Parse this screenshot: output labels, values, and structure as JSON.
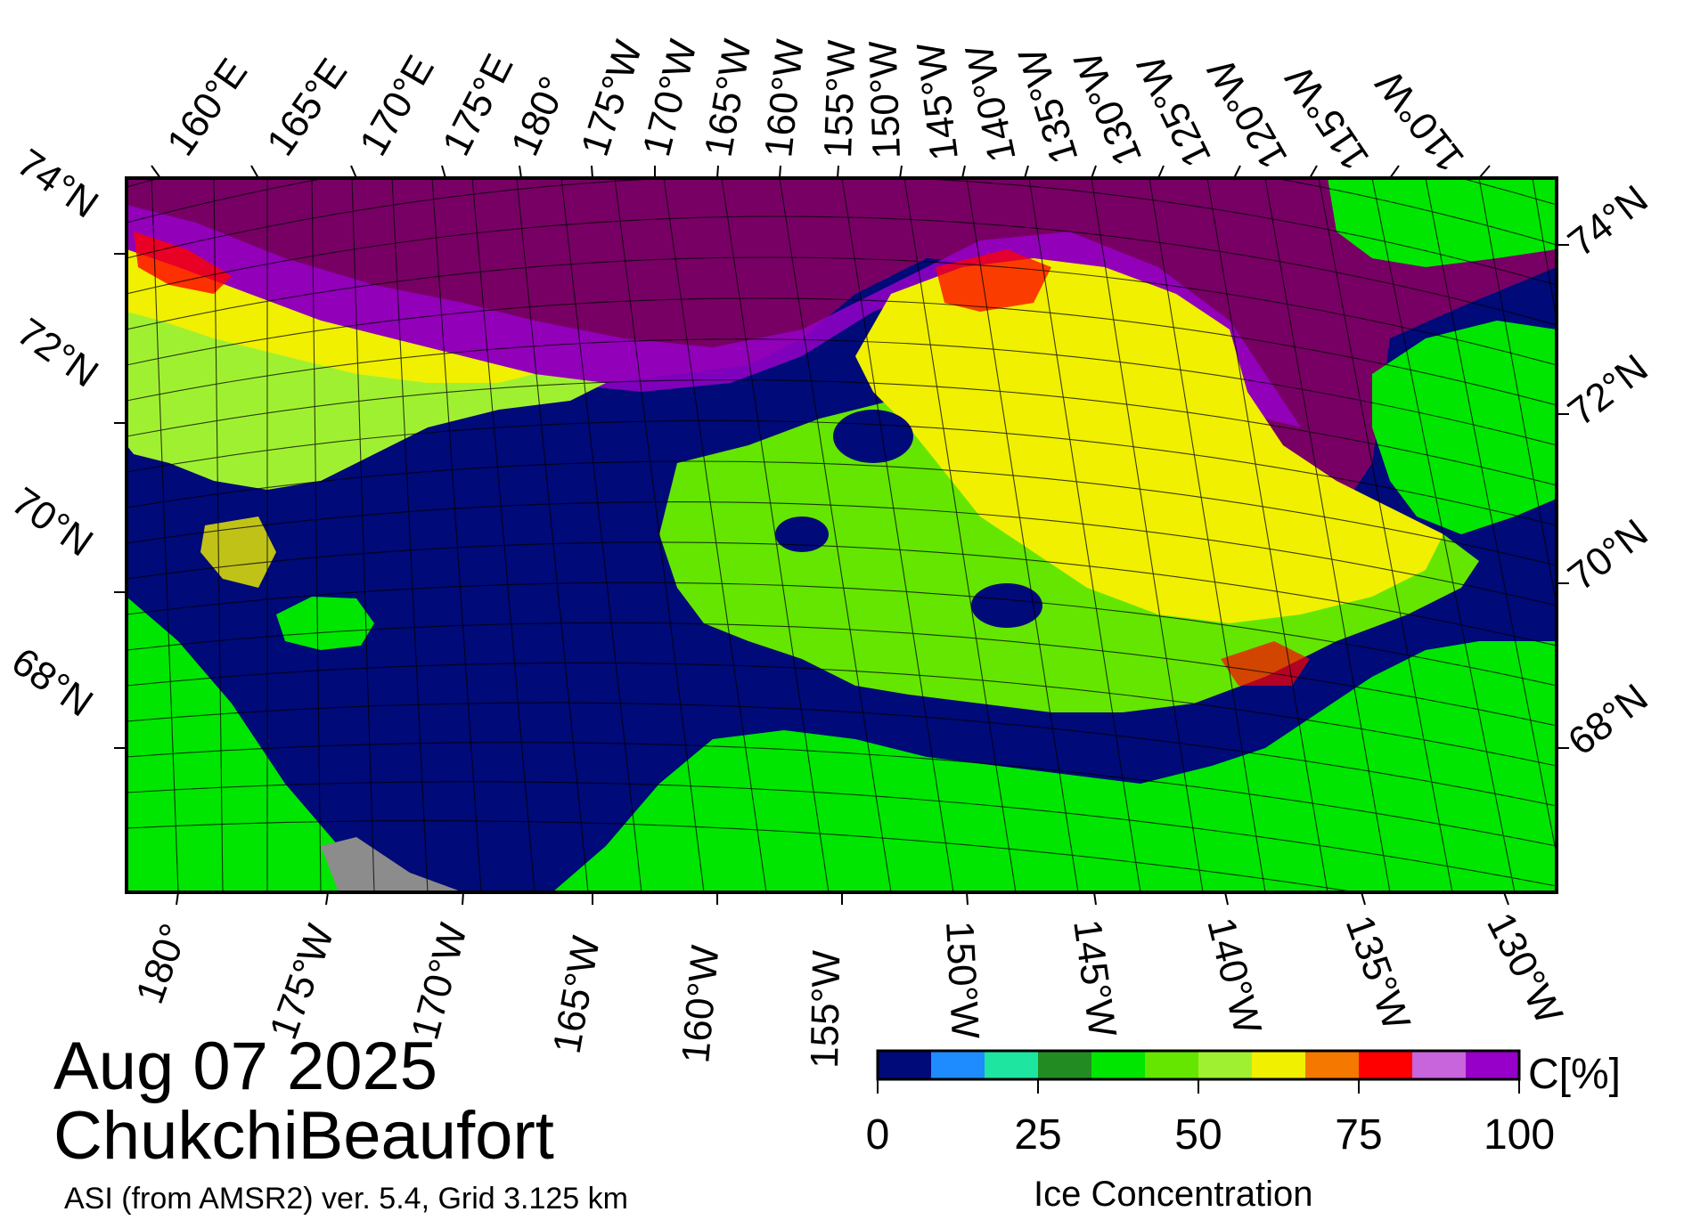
{
  "map": {
    "date": "Aug 07 2025",
    "region": "ChukchiBeaufort",
    "product": "ASI (from AMSR2) ver. 5.4,  Grid 3.125 km",
    "top_lon_labels": [
      "160°E",
      "165°E",
      "170°E",
      "175°E",
      "180°",
      "175°W",
      "170°W",
      "165°W",
      "160°W",
      "155°W",
      "150°W",
      "145°W",
      "140°W",
      "135°W",
      "130°W",
      "125°W",
      "120°W",
      "115°W",
      "110°W"
    ],
    "bottom_lon_labels": [
      "180°",
      "175°W",
      "170°W",
      "165°W",
      "160°W",
      "155°W",
      "150°W",
      "145°W",
      "140°W",
      "135°W",
      "130°W"
    ],
    "left_lat_labels": [
      "74°N",
      "72°N",
      "70°N",
      "68°N"
    ],
    "right_lat_labels": [
      "74°N",
      "72°N",
      "70°N",
      "68°N"
    ]
  },
  "colorbar": {
    "title": "Ice Concentration",
    "unit": "C[%]",
    "ticks": [
      "0",
      "25",
      "50",
      "75",
      "100"
    ],
    "colors": [
      "#000a78",
      "#1e8cff",
      "#1ee6a0",
      "#228b22",
      "#00e600",
      "#64e600",
      "#a0f032",
      "#f0f000",
      "#f57800",
      "#ff0000",
      "#c864dc",
      "#9600c8"
    ]
  },
  "palette": {
    "open_water": "#000a78",
    "land": "#00e600",
    "land_mask": "#8c8c8c",
    "pack_ice": "#780064",
    "frame": "#000000"
  }
}
